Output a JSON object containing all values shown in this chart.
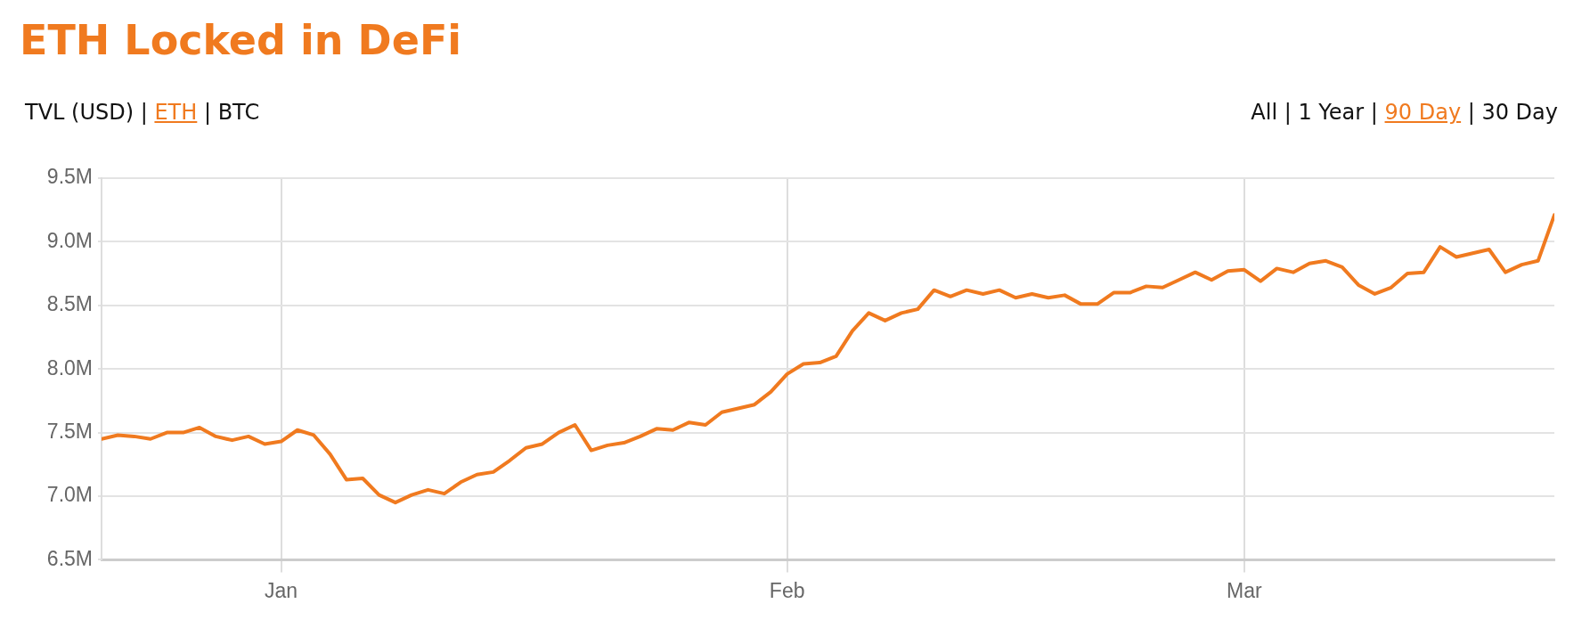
{
  "chart_data": {
    "type": "line",
    "title": "ETH Locked in DeFi",
    "annotations": [
      "TVL (USD) | ETH | BTC",
      "All | 1 Year | 90 Day | 30 Day"
    ],
    "categories": [
      null,
      null,
      null,
      null,
      null,
      null,
      null,
      null,
      null,
      null,
      null,
      "Jan",
      null,
      null,
      null,
      null,
      null,
      null,
      null,
      null,
      null,
      null,
      null,
      null,
      null,
      null,
      null,
      null,
      null,
      null,
      null,
      null,
      null,
      null,
      null,
      null,
      null,
      null,
      null,
      null,
      null,
      null,
      "Feb",
      null,
      null,
      null,
      null,
      null,
      null,
      null,
      null,
      null,
      null,
      null,
      null,
      null,
      null,
      null,
      null,
      null,
      null,
      null,
      null,
      null,
      null,
      null,
      null,
      null,
      null,
      null,
      "Mar",
      null,
      null,
      null,
      null,
      null,
      null,
      null,
      null,
      null,
      null,
      null,
      null,
      null,
      null,
      null,
      null,
      null,
      null,
      null
    ],
    "series": [
      {
        "color": "#f07a1f",
        "values": [
          7.45,
          7.48,
          7.47,
          7.45,
          7.5,
          7.5,
          7.54,
          7.47,
          7.44,
          7.47,
          7.41,
          7.43,
          7.52,
          7.48,
          7.33,
          7.13,
          7.14,
          7.01,
          6.95,
          7.01,
          7.05,
          7.02,
          7.11,
          7.17,
          7.19,
          7.28,
          7.38,
          7.41,
          7.5,
          7.56,
          7.36,
          7.4,
          7.42,
          7.47,
          7.53,
          7.52,
          7.58,
          7.56,
          7.66,
          7.69,
          7.72,
          7.82,
          7.96,
          8.04,
          8.05,
          8.1,
          8.3,
          8.44,
          8.38,
          8.44,
          8.47,
          8.62,
          8.57,
          8.62,
          8.59,
          8.62,
          8.56,
          8.59,
          8.56,
          8.58,
          8.51,
          8.51,
          8.6,
          8.6,
          8.65,
          8.64,
          8.7,
          8.76,
          8.7,
          8.77,
          8.78,
          8.69,
          8.79,
          8.76,
          8.83,
          8.85,
          8.8,
          8.66,
          8.59,
          8.64,
          8.75,
          8.76,
          8.96,
          8.88,
          8.91,
          8.94,
          8.76,
          8.82,
          8.85,
          9.21
        ]
      }
    ],
    "ylim": [
      6.5,
      9.5
    ],
    "yticks": [
      {
        "value": 6.5,
        "label": "6.5M"
      },
      {
        "value": 7.0,
        "label": "7.0M"
      },
      {
        "value": 7.5,
        "label": "7.5M"
      },
      {
        "value": 8.0,
        "label": "8.0M"
      },
      {
        "value": 8.5,
        "label": "8.5M"
      },
      {
        "value": 9.0,
        "label": "9.0M"
      },
      {
        "value": 9.5,
        "label": "9.5M"
      }
    ],
    "grid": true,
    "legend": false,
    "marker": "none",
    "line_style": "solid"
  }
}
